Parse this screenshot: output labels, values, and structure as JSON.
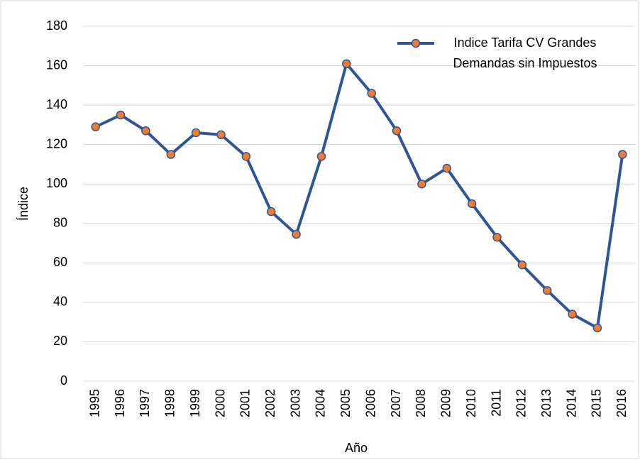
{
  "chart_data": {
    "type": "line",
    "x_label": "Año",
    "y_label": "Índice",
    "categories": [
      "1995",
      "1996",
      "1997",
      "1998",
      "1999",
      "2000",
      "2001",
      "2002",
      "2003",
      "2004",
      "2005",
      "2006",
      "2007",
      "2008",
      "2009",
      "2010",
      "2011",
      "2012",
      "2013",
      "2014",
      "2015",
      "2016"
    ],
    "series": [
      {
        "name": "Indice Tarifa CV Grandes Demandas sin Impuestos",
        "color": "#2f5597",
        "marker_color": "#ed7d31",
        "values": [
          129,
          135,
          127,
          115,
          126,
          125,
          114,
          86,
          74.5,
          114,
          161,
          146,
          127,
          100,
          108,
          90,
          73,
          59,
          46,
          34,
          27,
          115
        ]
      }
    ],
    "ylim": [
      0,
      180
    ],
    "yticks": [
      0,
      20,
      40,
      60,
      80,
      100,
      120,
      140,
      160,
      180
    ],
    "grid": true,
    "legend": "upper right"
  }
}
